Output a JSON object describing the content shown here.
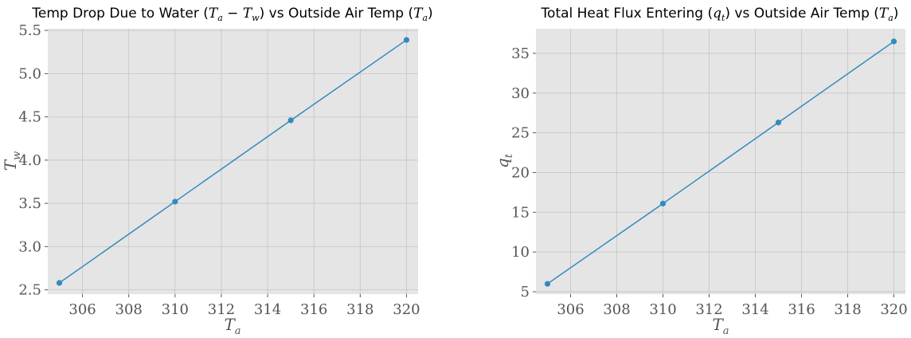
{
  "chart_data": [
    {
      "type": "line",
      "title": "Temp Drop Due to Water (T_a − T_w) vs Outside Air Temp (T_a)",
      "xlabel": "T_a",
      "ylabel": "T_w",
      "x": [
        305,
        310,
        315,
        320
      ],
      "series": [
        {
          "values": [
            2.58,
            3.52,
            4.46,
            5.39
          ],
          "color": "#348abd"
        }
      ],
      "xlim": [
        304.5,
        320.5
      ],
      "ylim": [
        2.45,
        5.52
      ],
      "xticks": [
        306,
        308,
        310,
        312,
        314,
        316,
        318,
        320
      ],
      "yticks": [
        2.5,
        3.0,
        3.5,
        4.0,
        4.5,
        5.0,
        5.5
      ],
      "ytick_labels": [
        "2.5",
        "3.0",
        "3.5",
        "4.0",
        "4.5",
        "5.0",
        "5.5"
      ],
      "grid": true
    },
    {
      "type": "line",
      "title": "Total Heat Flux Entering (q_t) vs Outside Air Temp (T_a)",
      "xlabel": "T_a",
      "ylabel": "q_t",
      "x": [
        305,
        310,
        315,
        320
      ],
      "series": [
        {
          "values": [
            6.0,
            16.1,
            26.3,
            36.5
          ],
          "color": "#348abd"
        }
      ],
      "xlim": [
        304.5,
        320.5
      ],
      "ylim": [
        4.7,
        38.1
      ],
      "xticks": [
        306,
        308,
        310,
        312,
        314,
        316,
        318,
        320
      ],
      "yticks": [
        5,
        10,
        15,
        20,
        25,
        30,
        35
      ],
      "ytick_labels": [
        "5",
        "10",
        "15",
        "20",
        "25",
        "30",
        "35"
      ],
      "grid": true
    }
  ],
  "titles": {
    "left": {
      "pre": "Temp Drop Due to Water (",
      "math": "T",
      "sub1": "a",
      "mid": " − ",
      "math2": "T",
      "sub2": "w",
      "post": ") vs Outside Air Temp (",
      "math3": "T",
      "sub3": "a",
      "end": ")"
    },
    "right": {
      "pre": "Total Heat Flux Entering (",
      "math": "q",
      "sub1": "t",
      "post": ") vs Outside Air Temp (",
      "math3": "T",
      "sub3": "a",
      "end": ")"
    }
  },
  "axis_labels": {
    "left": {
      "x_main": "T",
      "x_sub": "a",
      "y_main": "T",
      "y_sub": "w"
    },
    "right": {
      "x_main": "T",
      "x_sub": "a",
      "y_main": "q",
      "y_sub": "t"
    }
  }
}
